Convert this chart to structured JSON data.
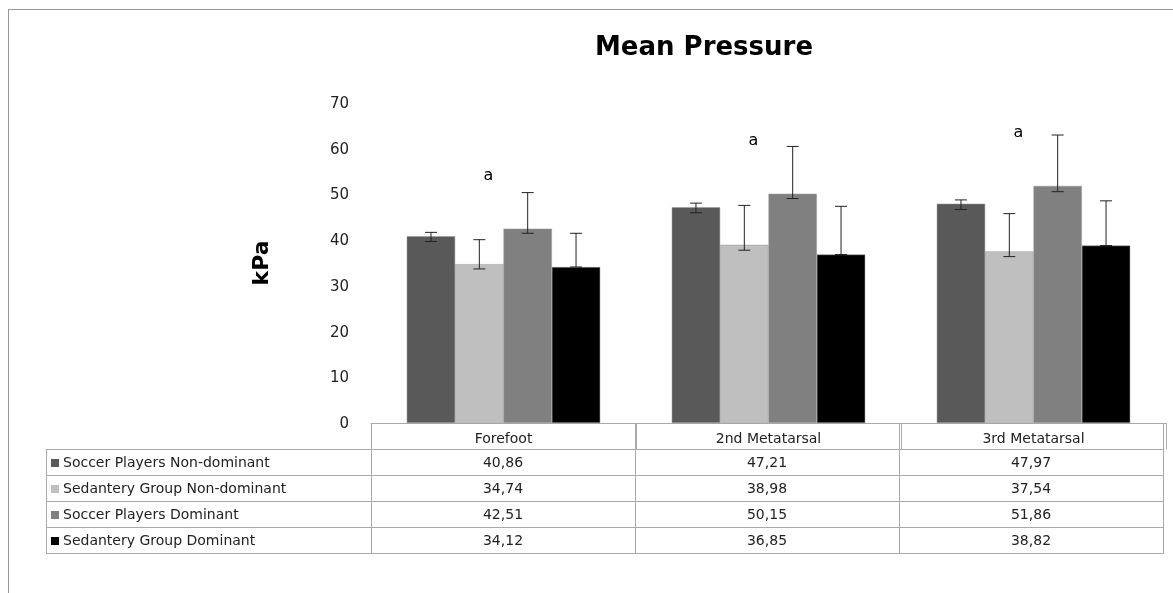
{
  "chart_data": {
    "type": "bar",
    "title": "Mean Pressure",
    "ylabel": "kPa",
    "categories": [
      "Forefoot",
      "2nd Metatarsal",
      "3rd Metatarsal"
    ],
    "series": [
      {
        "name": "Soccer Players  Non-dominant",
        "color": "#595959",
        "values": [
          40.86,
          47.21,
          47.97
        ],
        "value_labels": [
          "40,86",
          "47,21",
          "47,97"
        ],
        "errors": [
          [
            39.7,
            41.7
          ],
          [
            46.0,
            48.1
          ],
          [
            46.7,
            48.8
          ]
        ]
      },
      {
        "name": "Sedantery Group Non-dominant",
        "color": "#bfbfbf",
        "values": [
          34.74,
          38.98,
          37.54
        ],
        "value_labels": [
          "34,74",
          "38,98",
          "37,54"
        ],
        "errors": [
          [
            33.7,
            40.1
          ],
          [
            37.8,
            47.6
          ],
          [
            36.4,
            45.8
          ]
        ]
      },
      {
        "name": "Soccer Players  Dominant",
        "color": "#808080",
        "values": [
          42.51,
          50.15,
          51.86
        ],
        "value_labels": [
          "42,51",
          "50,15",
          "51,86"
        ],
        "errors": [
          [
            41.5,
            50.4
          ],
          [
            49.1,
            60.5
          ],
          [
            50.6,
            63.0
          ]
        ]
      },
      {
        "name": "Sedantery Group Dominant",
        "color": "#000000",
        "values": [
          34.12,
          36.85,
          38.82
        ],
        "value_labels": [
          "34,12",
          "36,85",
          "38,82"
        ],
        "errors": [
          [
            34.12,
            41.5
          ],
          [
            36.85,
            47.4
          ],
          [
            38.82,
            48.6
          ]
        ]
      }
    ],
    "annotations": [
      "a",
      "a",
      "a"
    ],
    "ylim": [
      0,
      70
    ],
    "yticks": [
      0,
      10,
      20,
      30,
      40,
      50,
      60,
      70
    ],
    "grid": false,
    "legend": "bottom"
  }
}
